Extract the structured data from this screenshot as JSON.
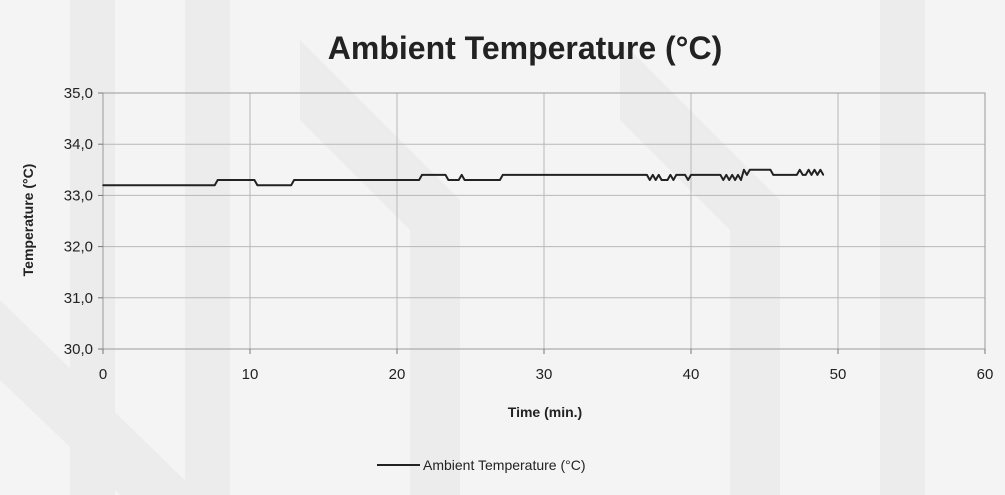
{
  "chart_data": {
    "type": "line",
    "title": "Ambient Temperature (°C)",
    "xlabel": "Time (min.)",
    "ylabel": "Temperature (°C)",
    "xlim": [
      0,
      60
    ],
    "ylim": [
      30,
      35
    ],
    "x_ticks": [
      "0",
      "10",
      "20",
      "30",
      "40",
      "50",
      "60"
    ],
    "y_ticks": [
      "30,0",
      "31,0",
      "32,0",
      "33,0",
      "34,0",
      "35,0"
    ],
    "grid": true,
    "legend_position": "bottom",
    "series": [
      {
        "name": "Ambient Temperature (°C)",
        "color": "#222222",
        "x": [
          0,
          7.6,
          7.8,
          10.3,
          10.5,
          12.8,
          13.0,
          21.5,
          21.7,
          23.3,
          23.5,
          24.2,
          24.4,
          24.6,
          24.8,
          27.0,
          27.2,
          37.0,
          37.2,
          37.4,
          37.6,
          37.8,
          38.0,
          38.4,
          38.6,
          38.8,
          39.0,
          39.6,
          39.8,
          40.0,
          40.2,
          42.0,
          42.2,
          42.4,
          42.6,
          42.8,
          43.0,
          43.2,
          43.4,
          43.6,
          43.8,
          44.0,
          44.2,
          45.4,
          45.6,
          47.2,
          47.4,
          47.6,
          47.8,
          48.0,
          48.2,
          48.4,
          48.6,
          48.8,
          49.0
        ],
        "values": [
          33.2,
          33.2,
          33.3,
          33.3,
          33.2,
          33.2,
          33.3,
          33.3,
          33.4,
          33.4,
          33.3,
          33.3,
          33.4,
          33.3,
          33.3,
          33.3,
          33.4,
          33.4,
          33.3,
          33.4,
          33.3,
          33.4,
          33.3,
          33.3,
          33.4,
          33.3,
          33.4,
          33.4,
          33.3,
          33.4,
          33.4,
          33.4,
          33.3,
          33.4,
          33.3,
          33.4,
          33.3,
          33.4,
          33.3,
          33.5,
          33.4,
          33.5,
          33.5,
          33.5,
          33.4,
          33.4,
          33.5,
          33.4,
          33.4,
          33.5,
          33.4,
          33.5,
          33.4,
          33.5,
          33.4
        ]
      }
    ]
  }
}
